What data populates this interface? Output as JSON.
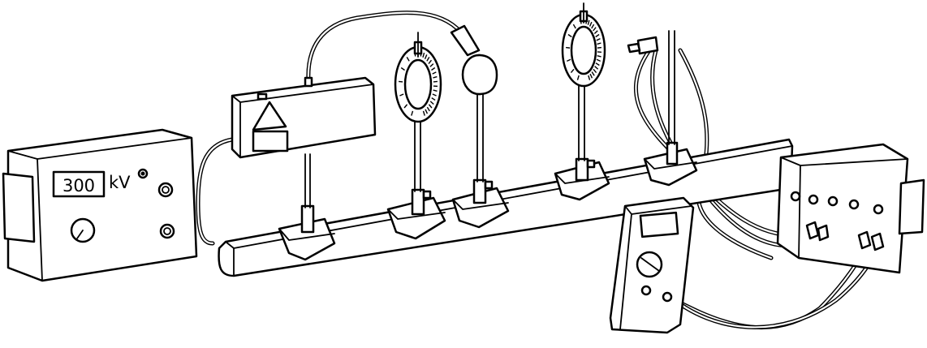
{
  "power_supply": {
    "display_value": "300",
    "unit_label": "kV"
  }
}
